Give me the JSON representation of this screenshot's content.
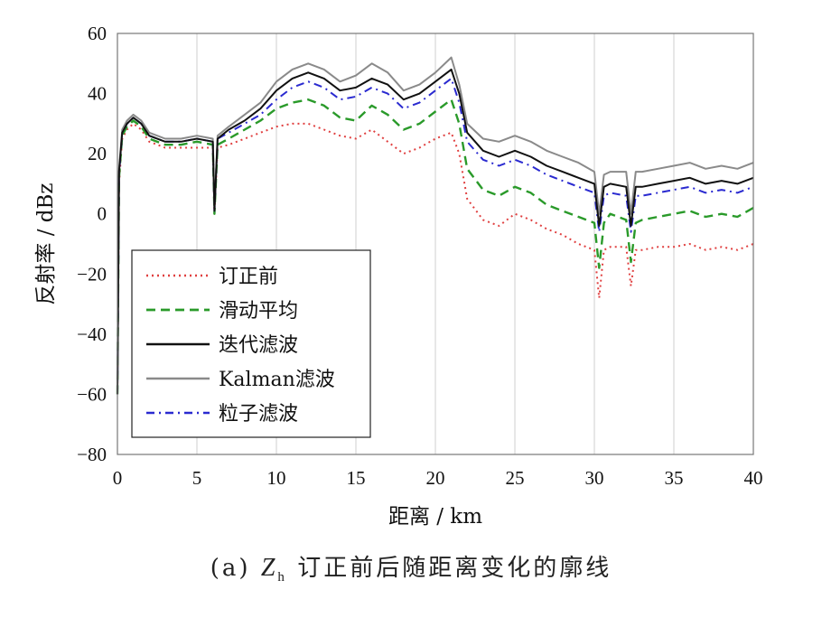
{
  "chart_data": {
    "type": "line",
    "xlabel": "距离 / km",
    "ylabel": "反射率 / dBz",
    "xlim": [
      0,
      40
    ],
    "ylim": [
      -80,
      60
    ],
    "xticks": [
      "0",
      "5",
      "10",
      "15",
      "20",
      "25",
      "30",
      "35",
      "40"
    ],
    "yticks": [
      "60",
      "40",
      "20",
      "0",
      "−20",
      "−40",
      "−60",
      "−80"
    ],
    "grid": "vertical",
    "legend_position": "lower-left",
    "series": [
      {
        "name": "订正前",
        "style": "dotted",
        "color": "#e04040",
        "x": [
          0,
          0.1,
          0.3,
          0.6,
          1,
          1.5,
          2,
          3,
          4,
          5,
          6,
          6.1,
          6.3,
          7,
          8,
          9,
          10,
          11,
          12,
          13,
          14,
          15,
          16,
          17,
          18,
          19,
          20,
          21,
          21.5,
          22,
          23,
          24,
          25,
          26,
          27,
          28,
          29,
          30,
          30.3,
          30.6,
          31,
          32,
          32.3,
          32.6,
          33,
          34,
          35,
          36,
          37,
          38,
          39,
          40
        ],
        "y": [
          -60,
          10,
          25,
          28,
          30,
          28,
          24,
          22,
          22,
          22,
          22,
          0,
          22,
          23,
          25,
          27,
          29,
          30,
          30,
          28,
          26,
          25,
          28,
          24,
          20,
          22,
          25,
          27,
          20,
          5,
          -2,
          -4,
          0,
          -2,
          -5,
          -7,
          -10,
          -12,
          -28,
          -12,
          -11,
          -11,
          -24,
          -12,
          -12,
          -11,
          -11,
          -10,
          -12,
          -11,
          -12,
          -10
        ]
      },
      {
        "name": "滑动平均",
        "style": "dashed",
        "color": "#2a9a2a",
        "x": [
          0,
          0.1,
          0.3,
          0.6,
          1,
          1.5,
          2,
          3,
          4,
          5,
          6,
          6.1,
          6.3,
          7,
          8,
          9,
          10,
          11,
          12,
          13,
          14,
          15,
          16,
          17,
          18,
          19,
          20,
          21,
          21.5,
          22,
          23,
          24,
          25,
          26,
          27,
          28,
          29,
          30,
          30.3,
          30.6,
          31,
          32,
          32.3,
          32.6,
          33,
          34,
          35,
          36,
          37,
          38,
          39,
          40
        ],
        "y": [
          -60,
          12,
          26,
          29,
          31,
          29,
          25,
          23,
          23,
          24,
          23,
          0,
          23,
          25,
          28,
          31,
          35,
          37,
          38,
          36,
          32,
          31,
          36,
          33,
          28,
          30,
          34,
          38,
          30,
          15,
          8,
          6,
          9,
          7,
          3,
          1,
          -1,
          -3,
          -18,
          -3,
          0,
          -2,
          -16,
          -3,
          -2,
          -1,
          0,
          1,
          -1,
          0,
          -1,
          2
        ]
      },
      {
        "name": "迭代滤波",
        "style": "solid",
        "color": "#111111",
        "x": [
          0,
          0.1,
          0.3,
          0.6,
          1,
          1.5,
          2,
          3,
          4,
          5,
          6,
          6.1,
          6.3,
          7,
          8,
          9,
          10,
          11,
          12,
          13,
          14,
          15,
          16,
          17,
          18,
          19,
          20,
          21,
          21.5,
          22,
          23,
          24,
          25,
          26,
          27,
          28,
          29,
          30,
          30.3,
          30.6,
          31,
          32,
          32.3,
          32.6,
          33,
          34,
          35,
          36,
          37,
          38,
          39,
          40
        ],
        "y": [
          -60,
          14,
          27,
          30,
          32,
          30,
          26,
          24,
          24,
          25,
          24,
          1,
          25,
          28,
          31,
          35,
          41,
          45,
          47,
          45,
          41,
          42,
          45,
          43,
          38,
          40,
          44,
          48,
          40,
          27,
          21,
          19,
          21,
          19,
          16,
          14,
          12,
          10,
          -4,
          9,
          10,
          9,
          -4,
          9,
          9,
          10,
          11,
          12,
          10,
          11,
          10,
          12
        ]
      },
      {
        "name": "Kalman滤波",
        "style": "solid",
        "color": "#8a8a8a",
        "x": [
          0,
          0.1,
          0.3,
          0.6,
          1,
          1.5,
          2,
          3,
          4,
          5,
          6,
          6.1,
          6.3,
          7,
          8,
          9,
          10,
          11,
          12,
          13,
          14,
          15,
          16,
          17,
          18,
          19,
          20,
          21,
          21.5,
          22,
          23,
          24,
          25,
          26,
          27,
          28,
          29,
          30,
          30.3,
          30.6,
          31,
          32,
          32.3,
          32.6,
          33,
          34,
          35,
          36,
          37,
          38,
          39,
          40
        ],
        "y": [
          -60,
          15,
          28,
          31,
          33,
          31,
          27,
          25,
          25,
          26,
          25,
          2,
          26,
          29,
          33,
          37,
          44,
          48,
          50,
          48,
          44,
          46,
          50,
          47,
          41,
          43,
          47,
          52,
          43,
          30,
          25,
          24,
          26,
          24,
          21,
          19,
          17,
          14,
          0,
          13,
          14,
          14,
          0,
          14,
          14,
          15,
          16,
          17,
          15,
          16,
          15,
          17
        ]
      },
      {
        "name": "粒子滤波",
        "style": "dash-dot",
        "color": "#2a2ad0",
        "x": [
          0,
          0.1,
          0.3,
          0.6,
          1,
          1.5,
          2,
          3,
          4,
          5,
          6,
          6.1,
          6.3,
          7,
          8,
          9,
          10,
          11,
          12,
          13,
          14,
          15,
          16,
          17,
          18,
          19,
          20,
          21,
          21.5,
          22,
          23,
          24,
          25,
          26,
          27,
          28,
          29,
          30,
          30.3,
          30.6,
          31,
          32,
          32.3,
          32.6,
          33,
          34,
          35,
          36,
          37,
          38,
          39,
          40
        ],
        "y": [
          -60,
          13,
          27,
          30,
          32,
          30,
          26,
          24,
          24,
          25,
          24,
          1,
          25,
          27,
          30,
          33,
          38,
          42,
          44,
          42,
          38,
          39,
          42,
          40,
          35,
          37,
          41,
          45,
          37,
          24,
          18,
          16,
          18,
          16,
          13,
          11,
          9,
          7,
          -6,
          6,
          7,
          6,
          -6,
          6,
          6,
          7,
          8,
          9,
          7,
          8,
          7,
          9
        ]
      }
    ]
  },
  "caption": {
    "prefix": "(a)",
    "variable": "Z",
    "subscript": "h",
    "text": "订正前后随距离变化的廓线"
  }
}
